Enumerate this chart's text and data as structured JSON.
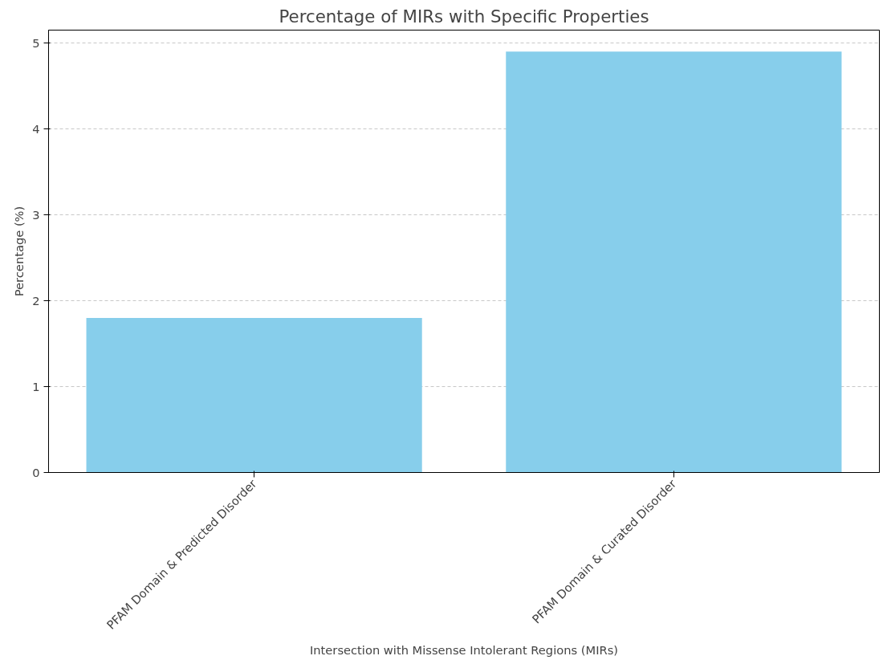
{
  "chart_data": {
    "type": "bar",
    "title": "Percentage of MIRs with Specific Properties",
    "xlabel": "Intersection with Missense Intolerant Regions (MIRs)",
    "ylabel": "Percentage (%)",
    "categories": [
      "PFAM Domain & Predicted Disorder",
      "PFAM Domain & Curated Disorder"
    ],
    "values": [
      1.8,
      4.9
    ],
    "color": "#87ceeb",
    "ylim": [
      0,
      5.15
    ],
    "yticks": [
      0,
      1,
      2,
      3,
      4,
      5
    ],
    "grid": "y"
  }
}
